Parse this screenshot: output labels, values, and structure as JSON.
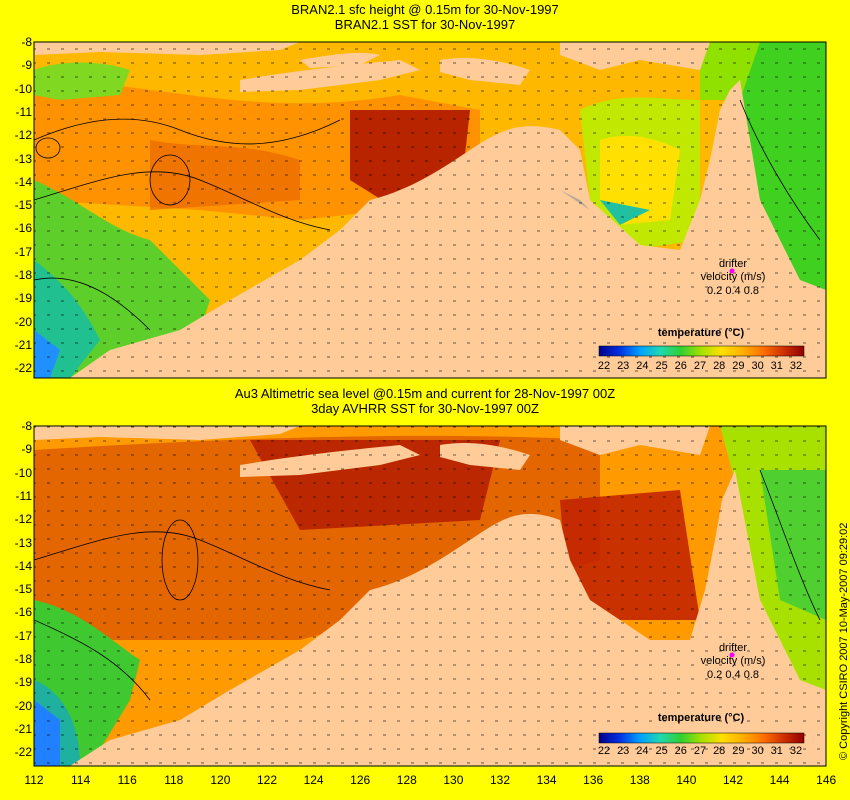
{
  "top_panel": {
    "title_line1": "BRAN2.1 sfc height @ 0.15m for 30-Nov-1997",
    "title_line2": "BRAN2.1 SST for 30-Nov-1997"
  },
  "bottom_panel": {
    "title_line1": "Au3 Altimetric sea level  @0.15m and current for 28-Nov-1997 00Z",
    "title_line2": "3day AVHRR SST for 30-Nov-1997 00Z"
  },
  "latitude_ticks": [
    "-8",
    "-9",
    "-10",
    "-11",
    "-12",
    "-13",
    "-14",
    "-15",
    "-16",
    "-17",
    "-18",
    "-19",
    "-20",
    "-21",
    "-22"
  ],
  "longitude_ticks": [
    "112",
    "114",
    "116",
    "118",
    "120",
    "122",
    "124",
    "126",
    "128",
    "130",
    "132",
    "134",
    "136",
    "138",
    "140",
    "142",
    "144",
    "146"
  ],
  "colorbar": {
    "title": "temperature (°C)",
    "labels": [
      "22",
      "23",
      "24",
      "25",
      "26",
      "27",
      "28",
      "29",
      "30",
      "31",
      "32"
    ],
    "colors": [
      "#00008c",
      "#0020d0",
      "#0070ff",
      "#00b8ff",
      "#20d8a0",
      "#30d030",
      "#a0e000",
      "#ffe000",
      "#ffa000",
      "#ff6000",
      "#c02000",
      "#900000"
    ]
  },
  "drifter_legend": {
    "line1": "drifter",
    "line2": "velocity (m/s)",
    "scale": "0.2 0.4 0.8"
  },
  "copyright": "© Copyright CSIRO 2007  10-May-2007 09:29:02",
  "colors": {
    "background": "#ffff00",
    "land": "#ffcc99",
    "shelf_mask": "#b8a898",
    "drifter": "#ff00ff"
  }
}
